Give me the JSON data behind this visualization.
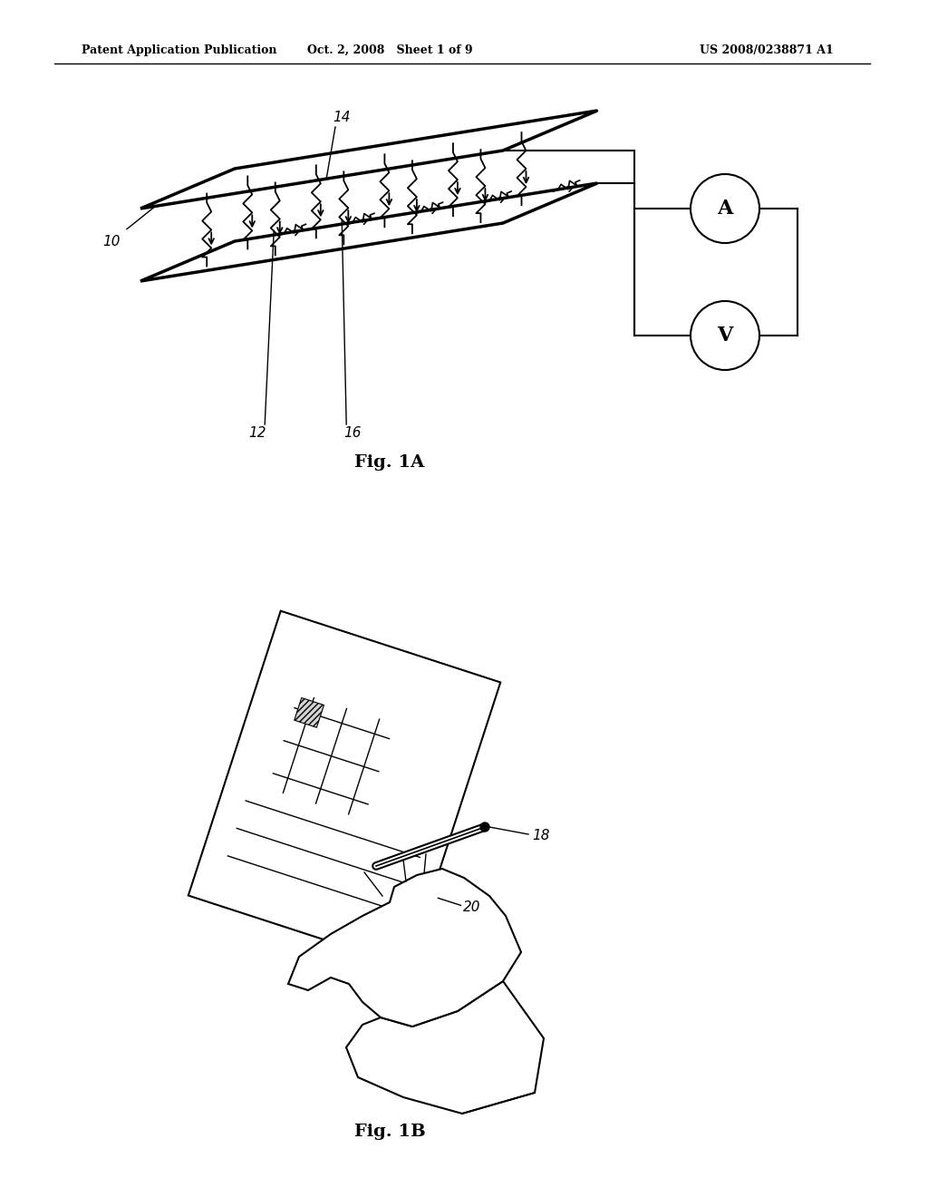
{
  "bg_color": "#ffffff",
  "header_left": "Patent Application Publication",
  "header_mid": "Oct. 2, 2008   Sheet 1 of 9",
  "header_right": "US 2008/0238871 A1",
  "fig1a_label": "Fig. 1A",
  "fig1b_label": "Fig. 1B",
  "label_10": "10",
  "label_12": "12",
  "label_14": "14",
  "label_16": "16",
  "label_18": "18",
  "label_20": "20",
  "label_A": "A",
  "label_V": "V"
}
